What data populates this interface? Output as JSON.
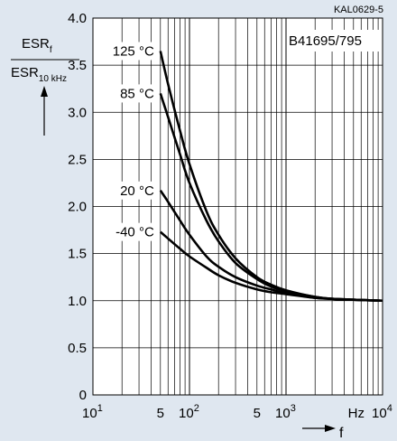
{
  "chart_data": {
    "type": "line",
    "code": "KAL0629-5",
    "part_number": "B41695/795",
    "ylabel_numerator": "ESR",
    "ylabel_numerator_sub": "f",
    "ylabel_denominator": "ESR",
    "ylabel_denominator_sub": "10 kHz",
    "xlabel": "f",
    "x_unit": "Hz",
    "x_scale": "log",
    "xlim": [
      10,
      10000
    ],
    "ylim": [
      0,
      4.0
    ],
    "grid": true,
    "y_ticks": [
      "0",
      "0.5",
      "1.0",
      "1.5",
      "2.0",
      "2.5",
      "3.0",
      "3.5",
      "4.0"
    ],
    "y_tick_values": [
      0,
      0.5,
      1.0,
      1.5,
      2.0,
      2.5,
      3.0,
      3.5,
      4.0
    ],
    "x_ticks": [
      {
        "value": 10,
        "base": "10",
        "exp": "1"
      },
      {
        "value": 50,
        "base": "5",
        "exp": ""
      },
      {
        "value": 100,
        "base": "10",
        "exp": "2"
      },
      {
        "value": 500,
        "base": "5",
        "exp": ""
      },
      {
        "value": 1000,
        "base": "10",
        "exp": "3"
      },
      {
        "value": 10000,
        "base": "10",
        "exp": "4"
      }
    ],
    "series": [
      {
        "name": "125 °C",
        "x": [
          50,
          60,
          80,
          100,
          150,
          200,
          300,
          500,
          700,
          1000,
          2000,
          3000,
          5000,
          10000
        ],
        "y": [
          3.65,
          3.3,
          2.8,
          2.45,
          1.95,
          1.7,
          1.45,
          1.25,
          1.17,
          1.11,
          1.04,
          1.02,
          1.01,
          1.0
        ]
      },
      {
        "name": "85 °C",
        "x": [
          50,
          60,
          80,
          100,
          150,
          200,
          300,
          500,
          700,
          1000,
          2000,
          3000,
          5000,
          10000
        ],
        "y": [
          3.2,
          2.95,
          2.55,
          2.25,
          1.85,
          1.63,
          1.4,
          1.23,
          1.15,
          1.1,
          1.04,
          1.02,
          1.01,
          1.0
        ]
      },
      {
        "name": "20 °C",
        "x": [
          50,
          60,
          80,
          100,
          150,
          200,
          300,
          500,
          700,
          1000,
          2000,
          3000,
          5000,
          10000
        ],
        "y": [
          2.17,
          2.05,
          1.85,
          1.7,
          1.47,
          1.36,
          1.25,
          1.16,
          1.12,
          1.08,
          1.03,
          1.02,
          1.01,
          1.0
        ]
      },
      {
        "name": "-40 °C",
        "x": [
          50,
          60,
          80,
          100,
          150,
          200,
          300,
          500,
          700,
          1000,
          2000,
          3000,
          5000,
          10000
        ],
        "y": [
          1.73,
          1.66,
          1.55,
          1.47,
          1.35,
          1.27,
          1.19,
          1.12,
          1.09,
          1.07,
          1.03,
          1.02,
          1.01,
          1.0
        ]
      }
    ],
    "colors": {
      "background": "#dfe7f0",
      "plot_background": "#ffffff",
      "line": "#000000",
      "grid": "#000000"
    }
  }
}
